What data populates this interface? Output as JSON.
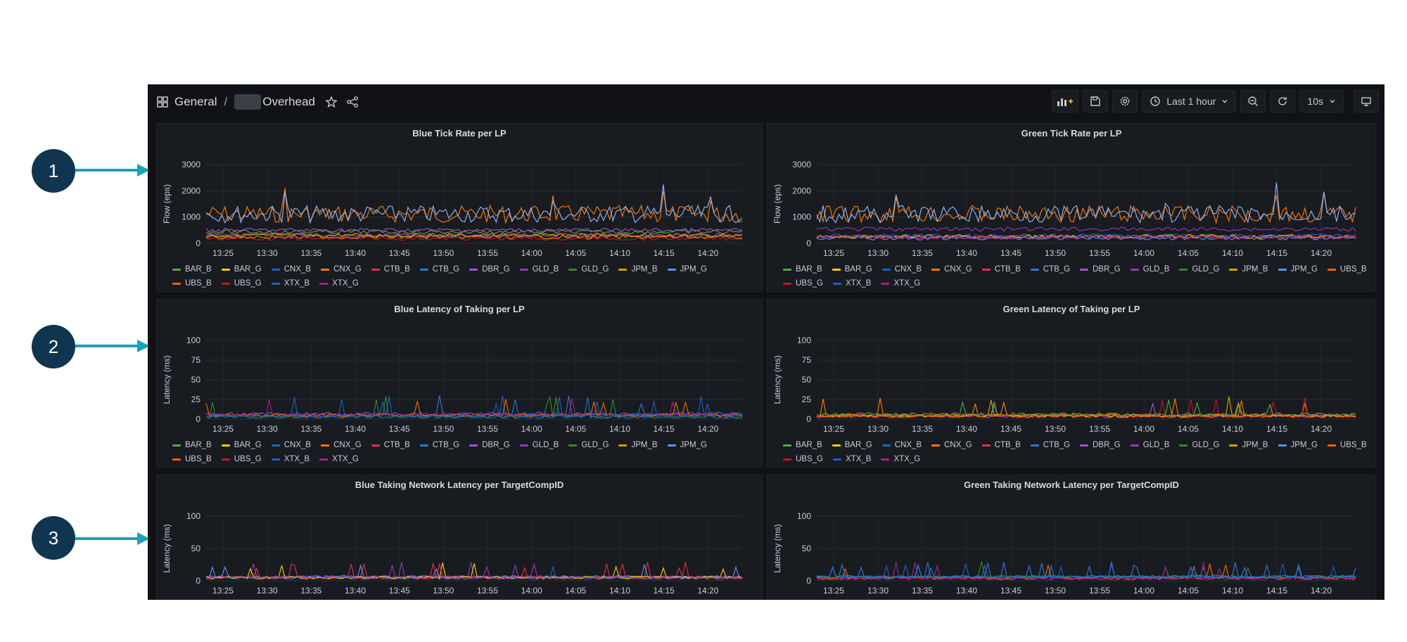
{
  "breadcrumb": {
    "root": "General",
    "separator": "/",
    "title": "Overhead"
  },
  "toolbar": {
    "time_range": "Last 1 hour",
    "refresh_interval": "10s"
  },
  "markers": [
    "1",
    "2",
    "3"
  ],
  "x_ticks": [
    "13:25",
    "13:30",
    "13:35",
    "13:40",
    "13:45",
    "13:50",
    "13:55",
    "14:00",
    "14:05",
    "14:10",
    "14:15",
    "14:20"
  ],
  "legend": [
    {
      "name": "BAR_B",
      "color": "#56a64b"
    },
    {
      "name": "BAR_G",
      "color": "#f2cc0c"
    },
    {
      "name": "CNX_B",
      "color": "#1f60c4"
    },
    {
      "name": "CNX_G",
      "color": "#ff780a"
    },
    {
      "name": "CTB_B",
      "color": "#e02f44"
    },
    {
      "name": "CTB_G",
      "color": "#3274d9"
    },
    {
      "name": "DBR_G",
      "color": "#a352cc"
    },
    {
      "name": "GLD_B",
      "color": "#8f3bb8"
    },
    {
      "name": "GLD_G",
      "color": "#37872d"
    },
    {
      "name": "JPM_B",
      "color": "#cca300"
    },
    {
      "name": "JPM_G",
      "color": "#5794f2"
    },
    {
      "name": "UBS_B",
      "color": "#fa6400"
    },
    {
      "name": "UBS_G",
      "color": "#c4162a"
    },
    {
      "name": "XTX_B",
      "color": "#1f60c4"
    },
    {
      "name": "XTX_G",
      "color": "#a3218f"
    }
  ],
  "panels": [
    {
      "title": "Blue Tick Rate per LP",
      "ylabel": "Flow (eps)",
      "yticks": [
        "3000",
        "2000",
        "1000",
        "0"
      ]
    },
    {
      "title": "Green Tick Rate per LP",
      "ylabel": "Flow (eps)",
      "yticks": [
        "3000",
        "2000",
        "1000",
        "0"
      ]
    },
    {
      "title": "Blue Latency of Taking per LP",
      "ylabel": "Latency (ms)",
      "yticks": [
        "100",
        "75",
        "50",
        "25",
        "0"
      ]
    },
    {
      "title": "Green Latency of Taking per LP",
      "ylabel": "Latency (ms)",
      "yticks": [
        "100",
        "75",
        "50",
        "25",
        "0"
      ]
    },
    {
      "title": "Blue Taking Network Latency per TargetCompID",
      "ylabel": "Latency (ms)",
      "yticks": [
        "100",
        "50",
        "0"
      ]
    },
    {
      "title": "Green Taking Network Latency per TargetCompID",
      "ylabel": "Latency (ms)",
      "yticks": [
        "100",
        "50",
        "0"
      ]
    }
  ]
}
